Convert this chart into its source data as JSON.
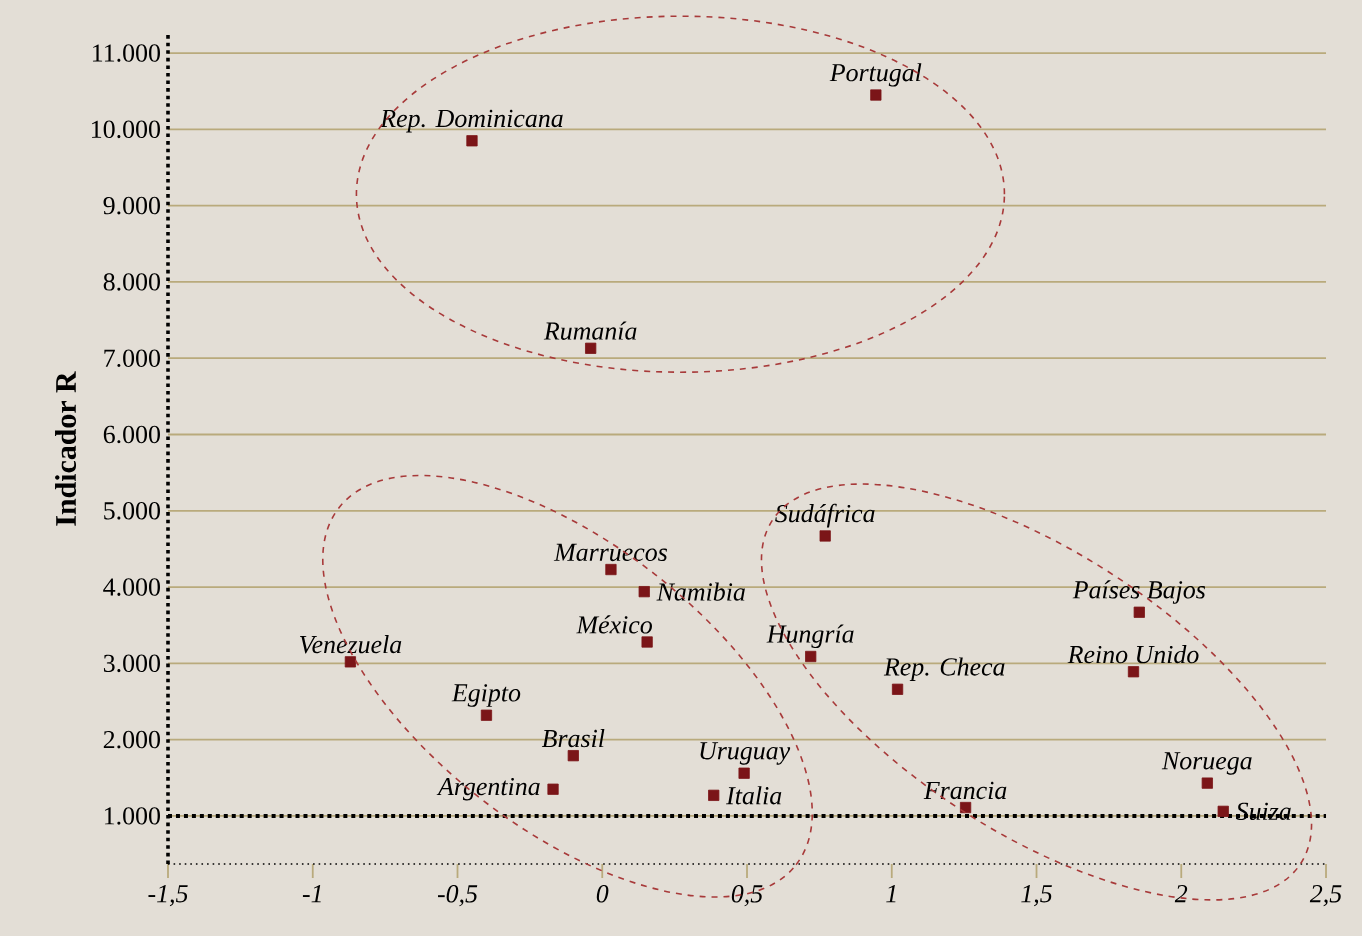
{
  "chart_data": {
    "type": "scatter",
    "ylabel": "Indicador R",
    "x": [
      -0.45,
      0.945,
      -0.04,
      0.77,
      0.03,
      0.145,
      0.155,
      -0.87,
      0.72,
      1.02,
      1.855,
      1.835,
      -0.4,
      -0.1,
      -0.17,
      0.49,
      0.385,
      1.255,
      2.09,
      2.145
    ],
    "values": [
      9850,
      10450,
      7130,
      4670,
      4230,
      3940,
      3280,
      3020,
      3090,
      2660,
      3670,
      2890,
      2320,
      1790,
      1350,
      1560,
      1270,
      1110,
      1430,
      1060
    ],
    "color": "#7b1518",
    "marker": "square",
    "xlim": [
      -1.5,
      2.5
    ],
    "ylim": [
      370,
      11250
    ],
    "xticks": [
      {
        "value": -1.5,
        "label": "-1,5"
      },
      -1,
      {
        "value": -0.5,
        "label": "-0,5"
      },
      0,
      {
        "value": 0.5,
        "label": "0,5"
      },
      1,
      {
        "value": 1.5,
        "label": "1,5"
      },
      2,
      {
        "value": 2.5,
        "label": "2,5"
      }
    ],
    "yticks": [
      {
        "value": 1000,
        "label": "1.000"
      },
      {
        "value": 2000,
        "label": "2.000"
      },
      {
        "value": 3000,
        "label": "3.000"
      },
      {
        "value": 4000,
        "label": "4.000"
      },
      {
        "value": 5000,
        "label": "5.000"
      },
      {
        "value": 6000,
        "label": "6.000"
      },
      {
        "value": 7000,
        "label": "7.000"
      },
      {
        "value": 8000,
        "label": "8.000"
      },
      {
        "value": 9000,
        "label": "9.000"
      },
      {
        "value": 10000,
        "label": "10.000"
      },
      {
        "value": 11000,
        "label": "11.000"
      }
    ],
    "grid": "y",
    "ref_lines": [
      {
        "axis": "y",
        "value": 1000,
        "line_style": "dotted"
      }
    ],
    "annotations": [
      {
        "text": "Rep. Dominicana",
        "x": -0.45,
        "y": 9850
      },
      {
        "text": "Portugal",
        "x": 0.945,
        "y": 10450
      },
      {
        "text": "Rumanía",
        "x": -0.04,
        "y": 7130
      },
      {
        "text": "Sudáfrica",
        "x": 0.77,
        "y": 4670
      },
      {
        "text": "Marruecos",
        "x": 0.03,
        "y": 4230
      },
      {
        "text": "Namibia",
        "x": 0.145,
        "y": 3940
      },
      {
        "text": "México",
        "x": 0.155,
        "y": 3280
      },
      {
        "text": "Venezuela",
        "x": -0.87,
        "y": 3020
      },
      {
        "text": "Hungría",
        "x": 0.72,
        "y": 3090
      },
      {
        "text": "Rep. Checa",
        "x": 1.02,
        "y": 2660
      },
      {
        "text": "Países Bajos",
        "x": 1.855,
        "y": 3670
      },
      {
        "text": "Reino Unido",
        "x": 1.835,
        "y": 2890
      },
      {
        "text": "Egipto",
        "x": -0.4,
        "y": 2320
      },
      {
        "text": "Brasil",
        "x": -0.1,
        "y": 1790
      },
      {
        "text": "Argentina",
        "x": -0.17,
        "y": 1350
      },
      {
        "text": "Uruguay",
        "x": 0.49,
        "y": 1560
      },
      {
        "text": "Italia",
        "x": 0.385,
        "y": 1270
      },
      {
        "text": "Francia",
        "x": 1.255,
        "y": 1110
      },
      {
        "text": "Noruega",
        "x": 2.09,
        "y": 1430
      },
      {
        "text": "Suiza",
        "x": 2.145,
        "y": 1060
      }
    ]
  }
}
